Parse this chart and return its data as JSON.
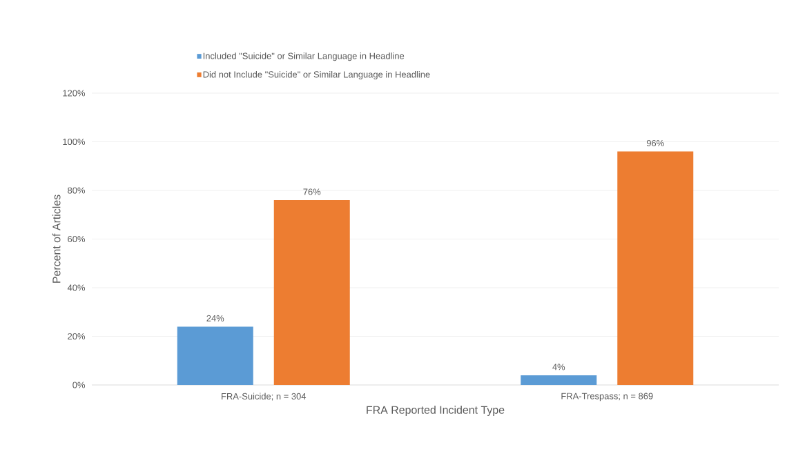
{
  "chart_data": {
    "type": "bar",
    "xlabel": "FRA Reported Incident Type",
    "ylabel": "Percent of Articles",
    "categories": [
      "FRA-Suicide; n = 304",
      "FRA-Trespass; n = 869"
    ],
    "series": [
      {
        "name": "Included \"Suicide\" or Similar Language in Headline",
        "color": "#5b9bd5",
        "values": [
          24,
          4
        ],
        "value_labels": [
          "24%",
          "4%"
        ]
      },
      {
        "name": "Did not Include \"Suicide\" or Similar Language in Headline",
        "color": "#ed7d31",
        "values": [
          76,
          96
        ],
        "value_labels": [
          "76%",
          "96%"
        ]
      }
    ],
    "ylim": [
      0,
      120
    ],
    "yticks": [
      {
        "value": 0,
        "label": "0%"
      },
      {
        "value": 20,
        "label": "20%"
      },
      {
        "value": 40,
        "label": "40%"
      },
      {
        "value": 60,
        "label": "60%"
      },
      {
        "value": 80,
        "label": "80%"
      },
      {
        "value": 100,
        "label": "100%"
      },
      {
        "value": 120,
        "label": "120%"
      }
    ],
    "grid": "y",
    "legend": "top"
  }
}
